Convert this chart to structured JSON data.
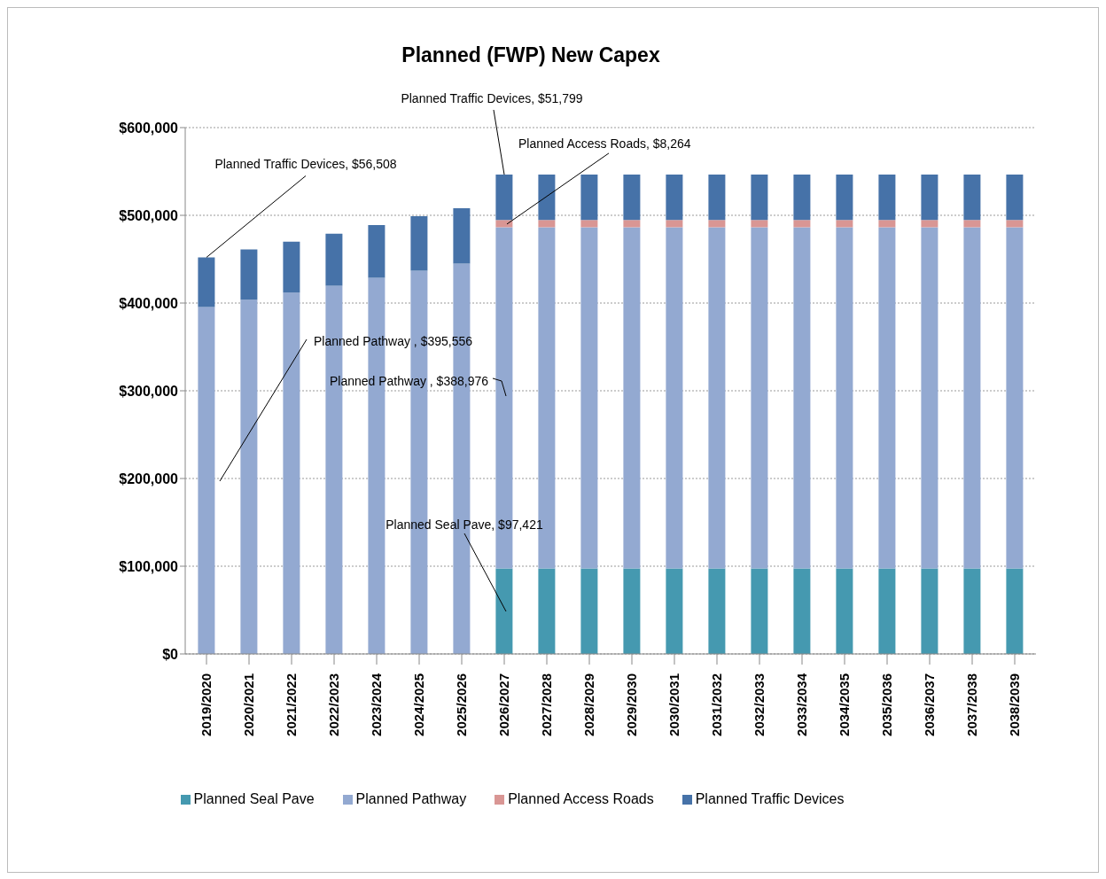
{
  "chart_data": {
    "type": "bar",
    "title": "Planned (FWP) New Capex",
    "stacked": true,
    "categories": [
      "2019/2020",
      "2020/2021",
      "2021/2022",
      "2022/2023",
      "2023/2024",
      "2024/2025",
      "2025/2026",
      "2026/2027",
      "2027/2028",
      "2028/2029",
      "2029/2030",
      "2030/2031",
      "2031/2032",
      "2032/2033",
      "2033/2034",
      "2034/2035",
      "2035/2036",
      "2036/2037",
      "2037/2038",
      "2038/2039"
    ],
    "series": [
      {
        "name": "Planned Seal Pave",
        "color": "#4599b0",
        "values": [
          0,
          0,
          0,
          0,
          0,
          0,
          0,
          97421,
          97421,
          97421,
          97421,
          97421,
          97421,
          97421,
          97421,
          97421,
          97421,
          97421,
          97421,
          97421
        ]
      },
      {
        "name": "Planned Pathway",
        "color": "#93a9d1",
        "values": [
          395556,
          403700,
          411800,
          419800,
          428900,
          436900,
          445000,
          388976,
          388976,
          388976,
          388976,
          388976,
          388976,
          388976,
          388976,
          388976,
          388976,
          388976,
          388976,
          388976
        ]
      },
      {
        "name": "Planned Access Roads",
        "color": "#d99694",
        "values": [
          0,
          0,
          0,
          0,
          0,
          0,
          0,
          8264,
          8264,
          8264,
          8264,
          8264,
          8264,
          8264,
          8264,
          8264,
          8264,
          8264,
          8264,
          8264
        ]
      },
      {
        "name": "Planned Traffic Devices",
        "color": "#4672a8",
        "values": [
          56508,
          57300,
          58200,
          59200,
          60100,
          62100,
          63000,
          51799,
          51799,
          51799,
          51799,
          51799,
          51799,
          51799,
          51799,
          51799,
          51799,
          51799,
          51799,
          51799
        ]
      }
    ],
    "ylim": [
      0,
      600000
    ],
    "yticks": [
      {
        "value": 0,
        "label": "$0"
      },
      {
        "value": 100000,
        "label": "$100,000"
      },
      {
        "value": 200000,
        "label": "$200,000"
      },
      {
        "value": 300000,
        "label": "$300,000"
      },
      {
        "value": 400000,
        "label": "$400,000"
      },
      {
        "value": 500000,
        "label": "$500,000"
      },
      {
        "value": 600000,
        "label": "$600,000"
      }
    ],
    "grid": "y",
    "legend": "bottom",
    "annotations": [
      {
        "text": "Planned  Traffic Devices, $56,508",
        "x": "2019/2020",
        "y": 452064
      },
      "Planned  Pathway , $395,556",
      {
        "text": "Planned  Traffic Devices, $51,799",
        "x": "2026/2027",
        "y": 546460
      },
      {
        "text": "Planned  Access Roads, $8,264",
        "x": "2026/2027",
        "y": 490000
      },
      "Planned  Pathway , $388,976",
      "Planned  Seal Pave, $97,421"
    ]
  }
}
